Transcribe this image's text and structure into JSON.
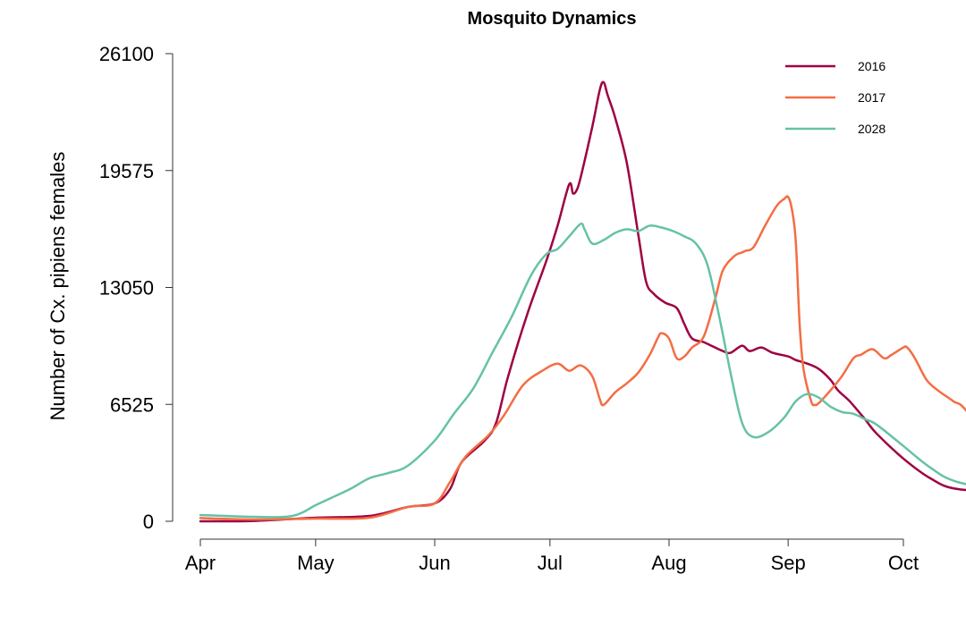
{
  "chart_data": {
    "type": "line",
    "title": "Mosquito Dynamics",
    "xlabel": "",
    "ylabel": "Number of Cx. pipiens females",
    "x_ticks": [
      "Apr",
      "May",
      "Jun",
      "Jul",
      "Aug",
      "Sep",
      "Oct"
    ],
    "y_ticks": [
      "0",
      "6525",
      "13050",
      "19575",
      "26100"
    ],
    "ylim": [
      0,
      26100
    ],
    "grid": false,
    "legend_position": "top-right",
    "series": [
      {
        "name": "2016",
        "color": "#9e0142",
        "points": [
          [
            "2016-04-01",
            0
          ],
          [
            "2016-04-15",
            20
          ],
          [
            "2016-05-01",
            200
          ],
          [
            "2016-05-15",
            300
          ],
          [
            "2016-05-25",
            800
          ],
          [
            "2016-06-01",
            1000
          ],
          [
            "2016-06-05",
            1800
          ],
          [
            "2016-06-08",
            3300
          ],
          [
            "2016-06-14",
            4500
          ],
          [
            "2016-06-17",
            5500
          ],
          [
            "2016-06-20",
            8000
          ],
          [
            "2016-06-25",
            11500
          ],
          [
            "2016-06-30",
            14500
          ],
          [
            "2016-07-03",
            16500
          ],
          [
            "2016-07-06",
            18800
          ],
          [
            "2016-07-07",
            18300
          ],
          [
            "2016-07-08",
            18500
          ],
          [
            "2016-07-09",
            19200
          ],
          [
            "2016-07-12",
            22000
          ],
          [
            "2016-07-14",
            24100
          ],
          [
            "2016-07-15",
            24500
          ],
          [
            "2016-07-16",
            23800
          ],
          [
            "2016-07-18",
            22500
          ],
          [
            "2016-07-21",
            20000
          ],
          [
            "2016-07-24",
            16000
          ],
          [
            "2016-07-26",
            13400
          ],
          [
            "2016-07-28",
            12700
          ],
          [
            "2016-07-31",
            12200
          ],
          [
            "2016-08-03",
            11900
          ],
          [
            "2016-08-05",
            11000
          ],
          [
            "2016-08-07",
            10200
          ],
          [
            "2016-08-10",
            10000
          ],
          [
            "2016-08-12",
            9800
          ],
          [
            "2016-08-15",
            9500
          ],
          [
            "2016-08-17",
            9400
          ],
          [
            "2016-08-20",
            9800
          ],
          [
            "2016-08-22",
            9500
          ],
          [
            "2016-08-25",
            9700
          ],
          [
            "2016-08-28",
            9400
          ],
          [
            "2016-09-01",
            9200
          ],
          [
            "2016-09-03",
            9000
          ],
          [
            "2016-09-06",
            8800
          ],
          [
            "2016-09-09",
            8500
          ],
          [
            "2016-09-12",
            7900
          ],
          [
            "2016-09-14",
            7300
          ],
          [
            "2016-09-17",
            6700
          ],
          [
            "2016-09-21",
            5700
          ],
          [
            "2016-09-24",
            4900
          ],
          [
            "2016-10-01",
            3500
          ],
          [
            "2016-10-08",
            2400
          ],
          [
            "2016-10-15",
            1800
          ],
          [
            "2016-10-31",
            1600
          ]
        ]
      },
      {
        "name": "2017",
        "color": "#f46d43",
        "points": [
          [
            "2017-04-01",
            180
          ],
          [
            "2017-04-15",
            100
          ],
          [
            "2017-05-01",
            150
          ],
          [
            "2017-05-15",
            200
          ],
          [
            "2017-05-25",
            800
          ],
          [
            "2017-06-01",
            1000
          ],
          [
            "2017-06-05",
            2200
          ],
          [
            "2017-06-09",
            3600
          ],
          [
            "2017-06-15",
            4800
          ],
          [
            "2017-06-19",
            5900
          ],
          [
            "2017-06-24",
            7600
          ],
          [
            "2017-06-29",
            8400
          ],
          [
            "2017-07-03",
            8800
          ],
          [
            "2017-07-06",
            8400
          ],
          [
            "2017-07-09",
            8700
          ],
          [
            "2017-07-12",
            8100
          ],
          [
            "2017-07-14",
            6800
          ],
          [
            "2017-07-15",
            6500
          ],
          [
            "2017-07-18",
            7200
          ],
          [
            "2017-07-21",
            7700
          ],
          [
            "2017-07-24",
            8300
          ],
          [
            "2017-07-27",
            9300
          ],
          [
            "2017-07-29",
            10200
          ],
          [
            "2017-07-30",
            10500
          ],
          [
            "2017-08-01",
            10200
          ],
          [
            "2017-08-03",
            9100
          ],
          [
            "2017-08-05",
            9200
          ],
          [
            "2017-08-07",
            9700
          ],
          [
            "2017-08-10",
            10300
          ],
          [
            "2017-08-13",
            12400
          ],
          [
            "2017-08-15",
            14000
          ],
          [
            "2017-08-18",
            14800
          ],
          [
            "2017-08-20",
            15000
          ],
          [
            "2017-08-21",
            15100
          ],
          [
            "2017-08-23",
            15300
          ],
          [
            "2017-08-26",
            16500
          ],
          [
            "2017-08-29",
            17600
          ],
          [
            "2017-08-31",
            18000
          ],
          [
            "2017-09-01",
            18100
          ],
          [
            "2017-09-02",
            17400
          ],
          [
            "2017-09-03",
            15600
          ],
          [
            "2017-09-04",
            11000
          ],
          [
            "2017-09-05",
            8500
          ],
          [
            "2017-09-07",
            6700
          ],
          [
            "2017-09-08",
            6500
          ],
          [
            "2017-09-09",
            6600
          ],
          [
            "2017-09-12",
            7300
          ],
          [
            "2017-09-15",
            8100
          ],
          [
            "2017-09-18",
            9100
          ],
          [
            "2017-09-20",
            9300
          ],
          [
            "2017-09-23",
            9600
          ],
          [
            "2017-09-26",
            9100
          ],
          [
            "2017-09-28",
            9300
          ],
          [
            "2017-10-01",
            9700
          ],
          [
            "2017-10-02",
            9700
          ],
          [
            "2017-10-04",
            9100
          ],
          [
            "2017-10-07",
            7900
          ],
          [
            "2017-10-10",
            7300
          ],
          [
            "2017-10-14",
            6700
          ],
          [
            "2017-10-18",
            6000
          ],
          [
            "2017-10-31",
            1900
          ]
        ]
      },
      {
        "name": "2028",
        "color": "#66c2a5",
        "points": [
          [
            "2028-04-01",
            350
          ],
          [
            "2028-04-15",
            250
          ],
          [
            "2028-04-25",
            300
          ],
          [
            "2028-05-01",
            900
          ],
          [
            "2028-05-05",
            1300
          ],
          [
            "2028-05-10",
            1800
          ],
          [
            "2028-05-15",
            2400
          ],
          [
            "2028-05-20",
            2700
          ],
          [
            "2028-05-25",
            3100
          ],
          [
            "2028-06-01",
            4500
          ],
          [
            "2028-06-06",
            6000
          ],
          [
            "2028-06-11",
            7400
          ],
          [
            "2028-06-16",
            9400
          ],
          [
            "2028-06-21",
            11400
          ],
          [
            "2028-06-26",
            13700
          ],
          [
            "2028-06-30",
            14900
          ],
          [
            "2028-07-03",
            15200
          ],
          [
            "2028-07-06",
            15900
          ],
          [
            "2028-07-09",
            16600
          ],
          [
            "2028-07-10",
            16300
          ],
          [
            "2028-07-12",
            15500
          ],
          [
            "2028-07-15",
            15700
          ],
          [
            "2028-07-18",
            16100
          ],
          [
            "2028-07-21",
            16300
          ],
          [
            "2028-07-24",
            16200
          ],
          [
            "2028-07-27",
            16500
          ],
          [
            "2028-07-30",
            16400
          ],
          [
            "2028-08-02",
            16200
          ],
          [
            "2028-08-05",
            15900
          ],
          [
            "2028-08-08",
            15500
          ],
          [
            "2028-08-11",
            14300
          ],
          [
            "2028-08-14",
            11500
          ],
          [
            "2028-08-17",
            8300
          ],
          [
            "2028-08-20",
            5500
          ],
          [
            "2028-08-23",
            4700
          ],
          [
            "2028-08-27",
            5000
          ],
          [
            "2028-08-31",
            5800
          ],
          [
            "2028-09-03",
            6700
          ],
          [
            "2028-09-06",
            7100
          ],
          [
            "2028-09-09",
            6900
          ],
          [
            "2028-09-12",
            6400
          ],
          [
            "2028-09-15",
            6100
          ],
          [
            "2028-09-18",
            6000
          ],
          [
            "2028-09-21",
            5700
          ],
          [
            "2028-09-24",
            5400
          ],
          [
            "2028-10-01",
            4200
          ],
          [
            "2028-10-08",
            3000
          ],
          [
            "2028-10-15",
            2200
          ],
          [
            "2028-10-31",
            1500
          ]
        ]
      }
    ]
  }
}
